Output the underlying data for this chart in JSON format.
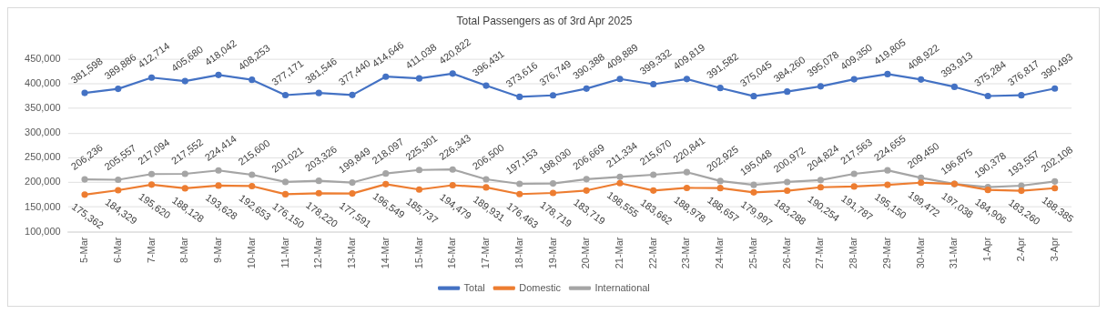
{
  "chart_data": {
    "type": "line",
    "title": "Total Passengers as of 3rd Apr 2025",
    "categories": [
      "5-Mar",
      "6-Mar",
      "7-Mar",
      "8-Mar",
      "9-Mar",
      "10-Mar",
      "11-Mar",
      "12-Mar",
      "13-Mar",
      "14-Mar",
      "15-Mar",
      "16-Mar",
      "17-Mar",
      "18-Mar",
      "19-Mar",
      "20-Mar",
      "21-Mar",
      "22-Mar",
      "23-Mar",
      "24-Mar",
      "25-Mar",
      "26-Mar",
      "27-Mar",
      "28-Mar",
      "29-Mar",
      "30-Mar",
      "31-Mar",
      "1-Apr",
      "2-Apr",
      "3-Apr"
    ],
    "series": [
      {
        "name": "Total",
        "color": "#4472c4",
        "values": [
          381598,
          389886,
          412714,
          405680,
          418042,
          408253,
          377171,
          381546,
          377440,
          414646,
          411038,
          420822,
          396431,
          373616,
          376749,
          390388,
          409889,
          399332,
          409819,
          391582,
          375045,
          384260,
          395078,
          409350,
          419805,
          408922,
          393913,
          375284,
          376817,
          390493
        ],
        "value_labels": [
          "381,598",
          "389,886",
          "412,714",
          "405,680",
          "418,042",
          "408,253",
          "377,171",
          "381,546",
          "377,440",
          "414,646",
          "411,038",
          "420,822",
          "396,431",
          "373,616",
          "376,749",
          "390,388",
          "409,889",
          "399,332",
          "409,819",
          "391,582",
          "375,045",
          "384,260",
          "395,078",
          "409,350",
          "419,805",
          "408,922",
          "393,913",
          "375,284",
          "376,817",
          "390,493"
        ]
      },
      {
        "name": "Domestic",
        "color": "#ed7d31",
        "values": [
          175362,
          184329,
          195620,
          188128,
          193628,
          192653,
          176150,
          178220,
          177591,
          196549,
          185737,
          194479,
          189931,
          176463,
          178719,
          183719,
          198555,
          183662,
          188978,
          188657,
          179997,
          183288,
          190254,
          191787,
          195150,
          199472,
          197038,
          184906,
          183260,
          188385
        ],
        "value_labels": [
          "175,362",
          "184,329",
          "195,620",
          "188,128",
          "193,628",
          "192,653",
          "176,150",
          "178,220",
          "177,591",
          "196,549",
          "185,737",
          "194,479",
          "189,931",
          "176,463",
          "178,719",
          "183,719",
          "198,555",
          "183,662",
          "188,978",
          "188,657",
          "179,997",
          "183,288",
          "190,254",
          "191,787",
          "195,150",
          "199,472",
          "197,038",
          "184,906",
          "183,260",
          "188,385"
        ]
      },
      {
        "name": "International",
        "color": "#a5a5a5",
        "values": [
          206236,
          205557,
          217094,
          217552,
          224414,
          215600,
          201021,
          203326,
          199849,
          218097,
          225301,
          226343,
          206500,
          197153,
          198030,
          206669,
          211334,
          215670,
          220841,
          202925,
          195048,
          200972,
          204824,
          217563,
          224655,
          209450,
          196875,
          190378,
          193557,
          202108
        ],
        "value_labels": [
          "206,236",
          "205,557",
          "217,094",
          "217,552",
          "224,414",
          "215,600",
          "201,021",
          "203,326",
          "199,849",
          "218,097",
          "225,301",
          "226,343",
          "206,500",
          "197,153",
          "198,030",
          "206,669",
          "211,334",
          "215,670",
          "220,841",
          "202,925",
          "195,048",
          "200,972",
          "204,824",
          "217,563",
          "224,655",
          "209,450",
          "196,875",
          "190,378",
          "193,557",
          "202,108"
        ]
      }
    ],
    "ylim": [
      100000,
      450000
    ],
    "yticks": [
      {
        "value": 100000,
        "label": "100,000"
      },
      {
        "value": 150000,
        "label": "150,000"
      },
      {
        "value": 200000,
        "label": "200,000"
      },
      {
        "value": 250000,
        "label": "250,000"
      },
      {
        "value": 300000,
        "label": "300,000"
      },
      {
        "value": 350000,
        "label": "350,000"
      },
      {
        "value": 400000,
        "label": "400,000"
      },
      {
        "value": 450000,
        "label": "450,000"
      }
    ],
    "grid": "y",
    "legend": "bottom",
    "marker": "circle",
    "line_style": "solid"
  }
}
